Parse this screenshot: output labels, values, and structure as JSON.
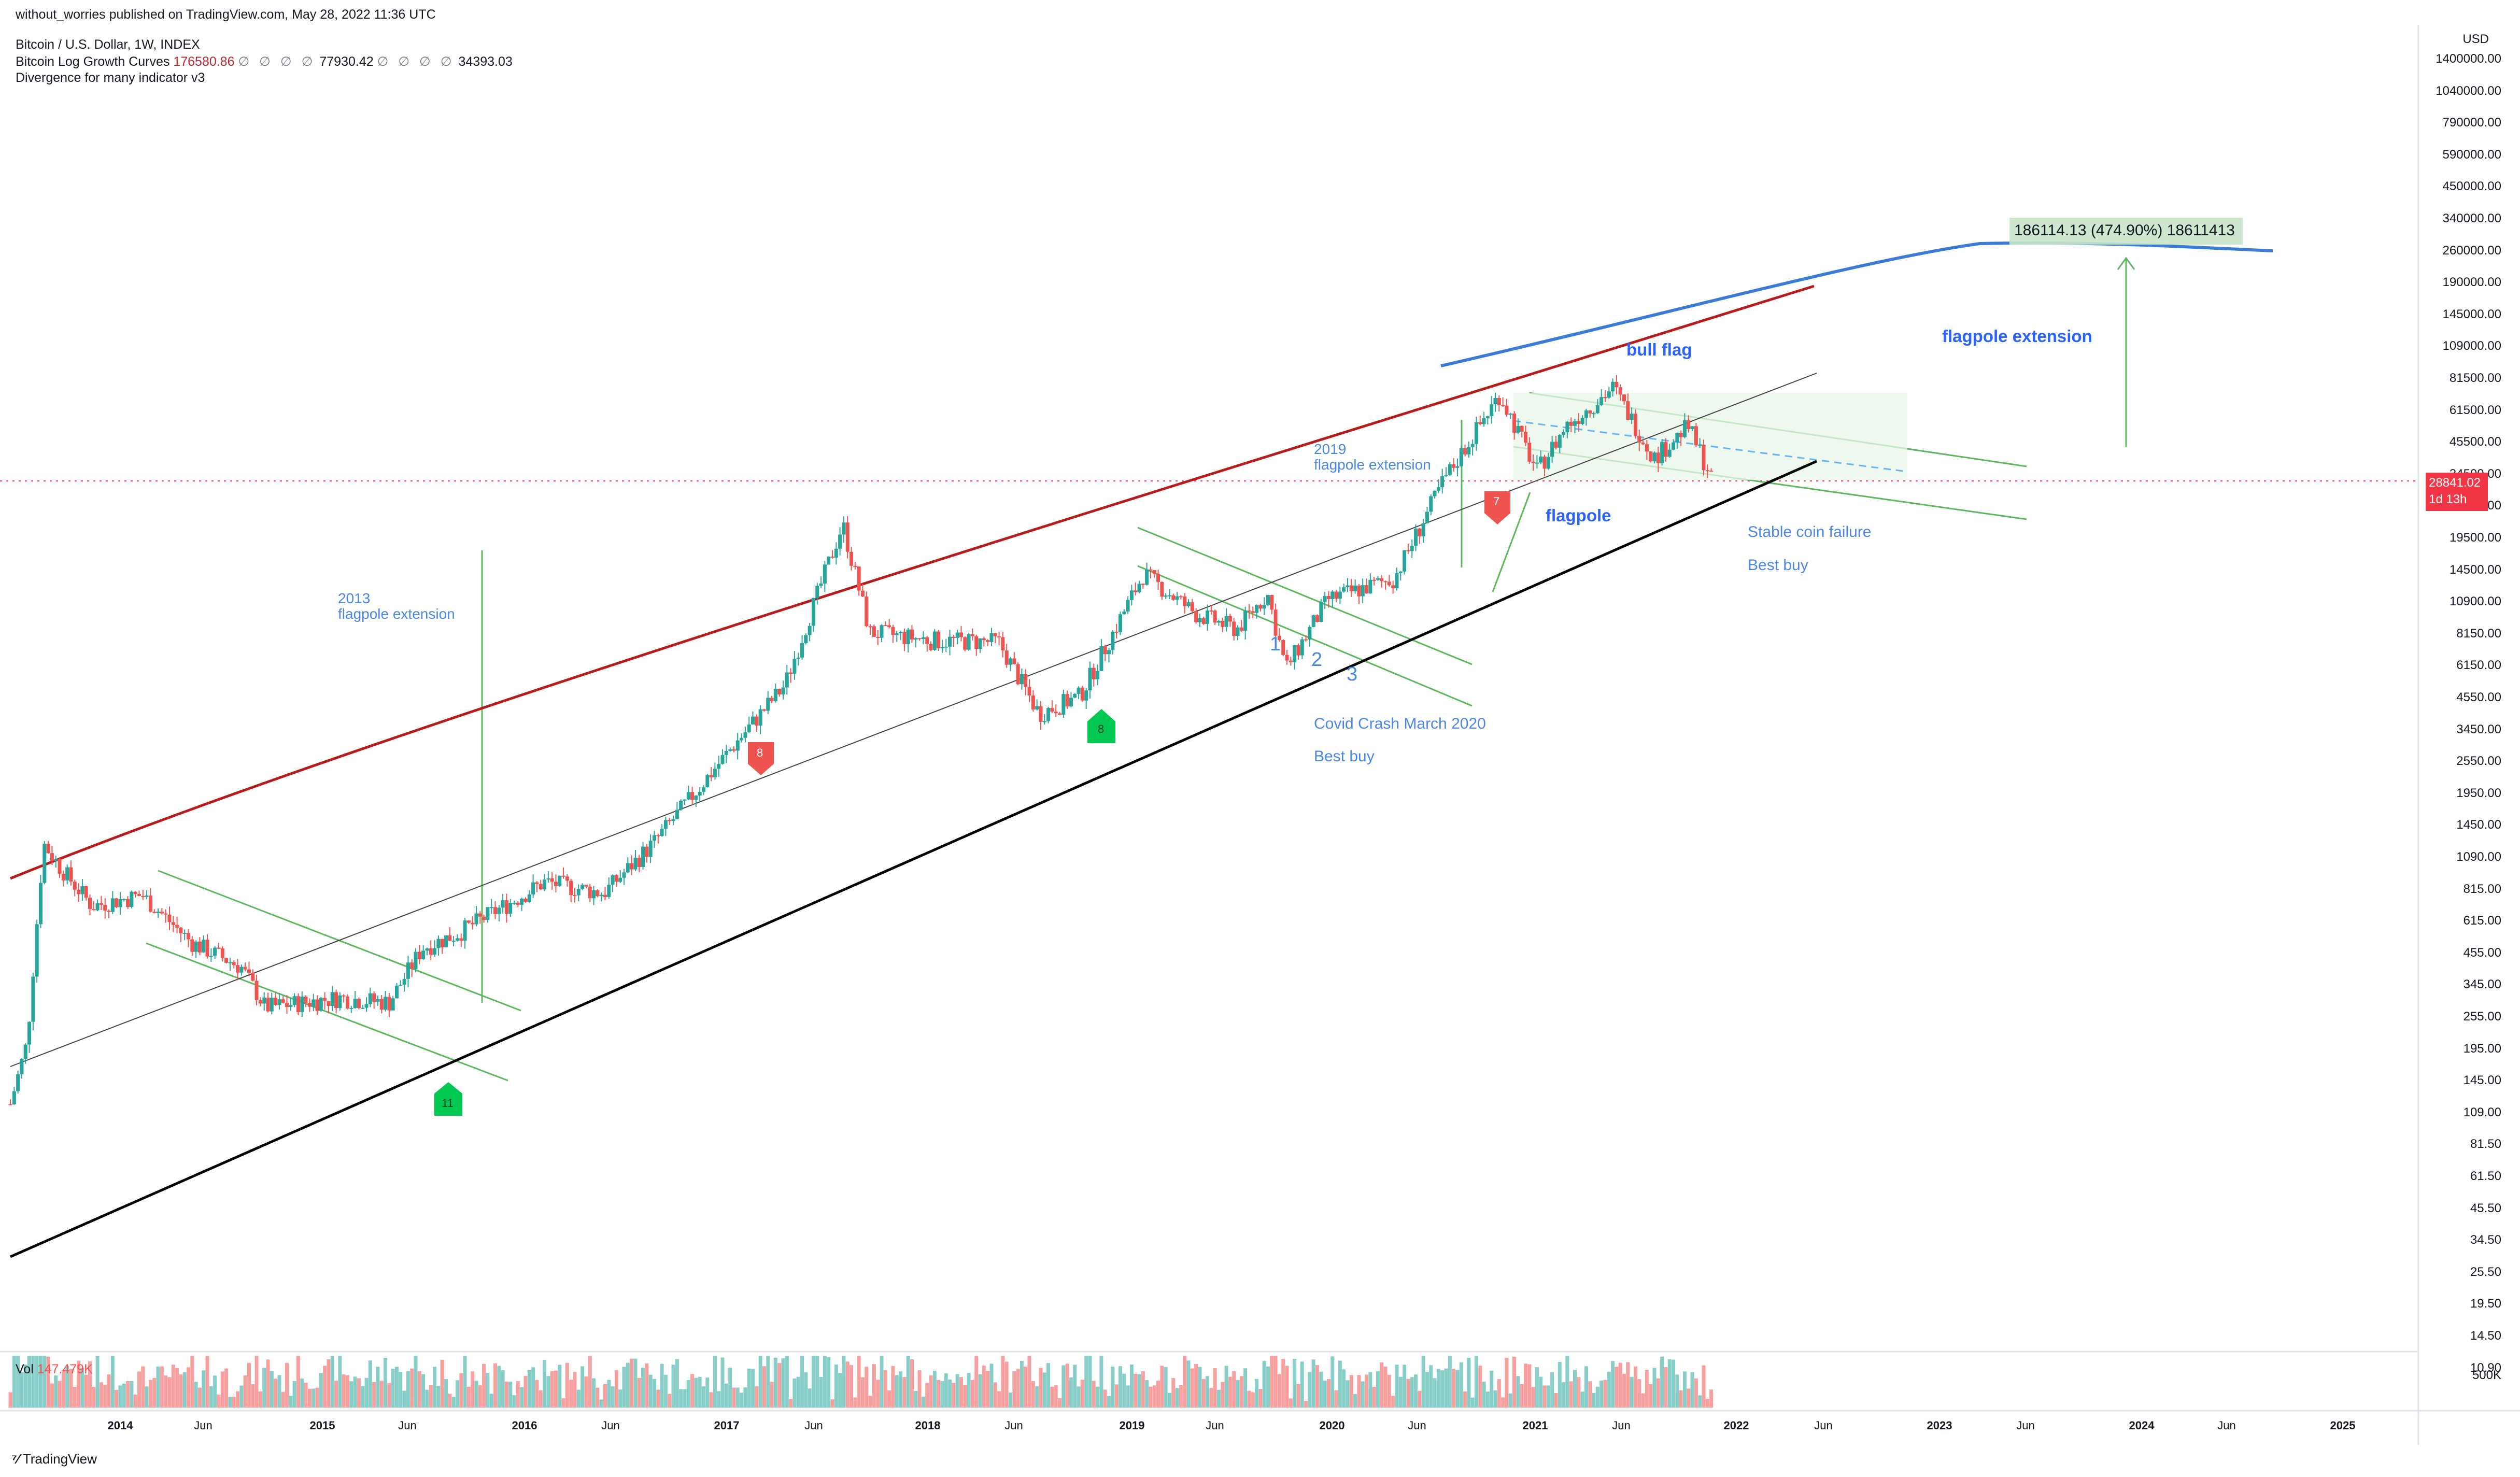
{
  "header": {
    "published": "without_worries published on TradingView.com, May 28, 2022 11:36 UTC",
    "symbol": "Bitcoin / U.S. Dollar, 1W, INDEX",
    "indicator1_name": "Bitcoin Log Growth Curves",
    "indicator1_v1": "176580.86",
    "indicator1_v2": "77930.42",
    "indicator1_v3": "34393.03",
    "placeholder_glyphs": "∅ ∅ ∅ ∅",
    "placeholder_glyphs2": "∅ ∅ ∅ ∅",
    "indicator2_name": "Divergence for many indicator v3"
  },
  "colors": {
    "up": "#26a69a",
    "down": "#ef5350",
    "red_curve": "#b71c1c",
    "blue_curve": "#3a7bd5",
    "channel": "#4caf50",
    "annotation_blue": "#2962ff",
    "price_line": "#f23645"
  },
  "axis": {
    "currency": "USD",
    "price_ticks": [
      "1400000.00",
      "1040000.00",
      "790000.00",
      "590000.00",
      "450000.00",
      "340000.00",
      "260000.00",
      "190000.00",
      "145000.00",
      "109000.00",
      "81500.00",
      "61500.00",
      "45500.00",
      "34500.00",
      "26000.00",
      "19500.00",
      "14500.00",
      "10900.00",
      "8150.00",
      "6150.00",
      "4550.00",
      "3450.00",
      "2550.00",
      "1950.00",
      "1450.00",
      "1090.00",
      "815.00",
      "615.00",
      "455.00",
      "345.00",
      "255.00",
      "195.00",
      "145.00",
      "109.00",
      "81.50",
      "61.50",
      "45.50",
      "34.50",
      "25.50",
      "19.50",
      "14.50",
      "10.90"
    ],
    "time_ticks": [
      "2014",
      "Jun",
      "2015",
      "Jun",
      "2016",
      "Jun",
      "2017",
      "Jun",
      "2018",
      "Jun",
      "2019",
      "Jun",
      "2020",
      "Jun",
      "2021",
      "Jun",
      "2022",
      "Jun",
      "2023",
      "Jun",
      "2024",
      "Jun",
      "2025"
    ],
    "volume_tick": "500K",
    "current_price": "28841.02",
    "current_countdown": "1d 13h"
  },
  "volume": {
    "label": "Vol",
    "value": "147.479K"
  },
  "annotations": {
    "measure": "186114.13 (474.90%) 18611413",
    "flagpole_extension": "flagpole extension",
    "bull_flag": "bull flag",
    "flagpole": "flagpole",
    "y2019_line1": "2019",
    "y2019_line2": "flagpole extension",
    "y2013_line1": "2013",
    "y2013_line2": "flagpole extension",
    "stable_coin": "Stable coin failure",
    "best_buy_2022": "Best buy",
    "covid": "Covid Crash March 2020",
    "best_buy_2020": "Best buy",
    "n1": "1",
    "n2": "2",
    "n3": "3",
    "badge_11": "11",
    "badge_8_green": "8",
    "badge_8_red": "8",
    "badge_7_red": "7"
  },
  "chart_data": {
    "type": "candlestick",
    "title": "Bitcoin / U.S. Dollar, 1W, INDEX",
    "y_scale": "log",
    "ylim": [
      10,
      1600000
    ],
    "xlim": [
      "2013-10-01",
      "2025-12-01"
    ],
    "grid": false,
    "price_path": [
      [
        "2013-10-01",
        90
      ],
      [
        "2013-11-01",
        160
      ],
      [
        "2013-12-01",
        1000
      ],
      [
        "2014-01-01",
        800
      ],
      [
        "2014-03-01",
        560
      ],
      [
        "2014-06-01",
        620
      ],
      [
        "2014-09-01",
        400
      ],
      [
        "2014-12-01",
        320
      ],
      [
        "2015-01-15",
        220
      ],
      [
        "2015-06-01",
        240
      ],
      [
        "2015-09-01",
        230
      ],
      [
        "2015-11-01",
        380
      ],
      [
        "2016-01-01",
        430
      ],
      [
        "2016-06-15",
        700
      ],
      [
        "2016-10-01",
        630
      ],
      [
        "2017-01-01",
        1000
      ],
      [
        "2017-06-01",
        2500
      ],
      [
        "2017-09-01",
        4300
      ],
      [
        "2017-12-17",
        19000
      ],
      [
        "2018-02-05",
        7000
      ],
      [
        "2018-06-01",
        6500
      ],
      [
        "2018-10-01",
        6400
      ],
      [
        "2018-12-15",
        3300
      ],
      [
        "2019-03-01",
        3900
      ],
      [
        "2019-06-26",
        12000
      ],
      [
        "2019-10-01",
        8300
      ],
      [
        "2019-12-15",
        7200
      ],
      [
        "2020-02-10",
        10000
      ],
      [
        "2020-03-15",
        5000
      ],
      [
        "2020-06-01",
        9500
      ],
      [
        "2020-10-01",
        11500
      ],
      [
        "2020-12-30",
        28000
      ],
      [
        "2021-04-14",
        63000
      ],
      [
        "2021-06-22",
        31000
      ],
      [
        "2021-08-15",
        47000
      ],
      [
        "2021-11-10",
        67000
      ],
      [
        "2022-01-24",
        35000
      ],
      [
        "2022-03-28",
        47000
      ],
      [
        "2022-05-12",
        28800
      ]
    ],
    "log_growth_curves": [
      {
        "name": "upper",
        "color": "#b71c1c",
        "points": [
          [
            "2013-10-01",
            600
          ],
          [
            "2015-06-01",
            2400
          ],
          [
            "2017-01-01",
            7600
          ],
          [
            "2018-06-01",
            22000
          ],
          [
            "2020-01-01",
            50000
          ],
          [
            "2021-06-01",
            95000
          ],
          [
            "2022-05-28",
            176580
          ]
        ]
      },
      {
        "name": "projection",
        "color": "#3a7bd5",
        "points": [
          [
            "2021-06-01",
            95000
          ],
          [
            "2022-05-28",
            176580
          ],
          [
            "2023-06-01",
            230000
          ],
          [
            "2024-06-01",
            240000
          ],
          [
            "2025-01-01",
            245000
          ]
        ]
      }
    ],
    "volume_last": "147.479K"
  }
}
